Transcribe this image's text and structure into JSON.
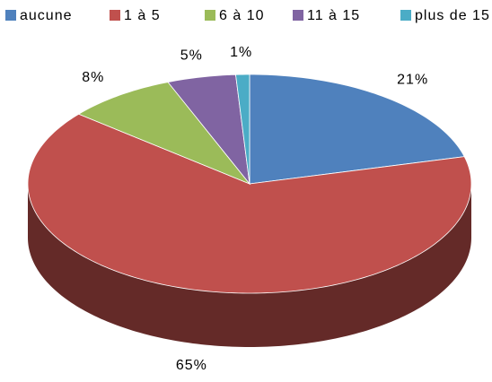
{
  "chart_data": {
    "type": "pie",
    "view": "3d",
    "categories": [
      "aucune",
      "1 à 5",
      "6 à 10",
      "11 à 15",
      "plus de 15"
    ],
    "values": [
      21,
      65,
      8,
      5,
      1
    ],
    "value_labels": [
      "21%",
      "65%",
      "8%",
      "5%",
      "1%"
    ],
    "colors": [
      "#4f81bd",
      "#c0504d",
      "#9bbb59",
      "#8064a2",
      "#4bacc6"
    ],
    "legend": "top"
  }
}
